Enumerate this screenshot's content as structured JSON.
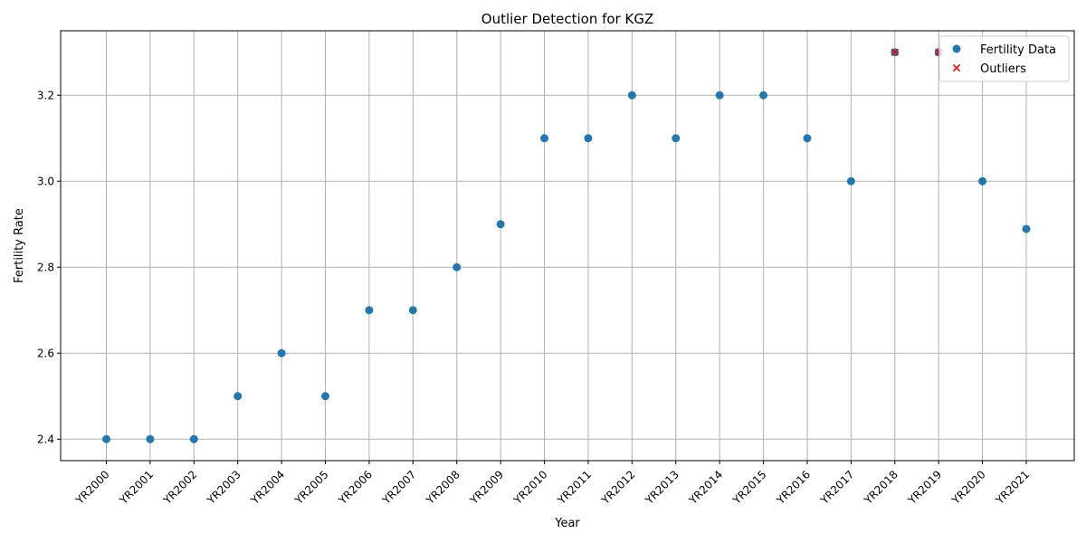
{
  "chart_data": {
    "type": "scatter",
    "title": "Outlier Detection for KGZ",
    "xlabel": "Year",
    "ylabel": "Fertility Rate",
    "categories": [
      "YR2000",
      "YR2001",
      "YR2002",
      "YR2003",
      "YR2004",
      "YR2005",
      "YR2006",
      "YR2007",
      "YR2008",
      "YR2009",
      "YR2010",
      "YR2011",
      "YR2012",
      "YR2013",
      "YR2014",
      "YR2015",
      "YR2016",
      "YR2017",
      "YR2018",
      "YR2019",
      "YR2020",
      "YR2021"
    ],
    "yticks": [
      "2.4",
      "2.6",
      "2.8",
      "3.0",
      "3.2"
    ],
    "ylim": [
      2.35,
      3.35
    ],
    "grid": true,
    "legend_position": "top-right",
    "series": [
      {
        "name": "Fertility Data",
        "marker": "circle",
        "color": "#1f77b4",
        "values": [
          2.4,
          2.4,
          2.4,
          2.5,
          2.6,
          2.5,
          2.7,
          2.7,
          2.8,
          2.9,
          3.1,
          3.1,
          3.2,
          3.1,
          3.2,
          3.2,
          3.1,
          3.0,
          3.3,
          3.3,
          3.0,
          2.889
        ]
      },
      {
        "name": "Outliers",
        "marker": "x",
        "color": "#ff0000",
        "points": [
          {
            "x": "YR2018",
            "y": 3.3
          },
          {
            "x": "YR2019",
            "y": 3.3
          }
        ]
      }
    ]
  }
}
